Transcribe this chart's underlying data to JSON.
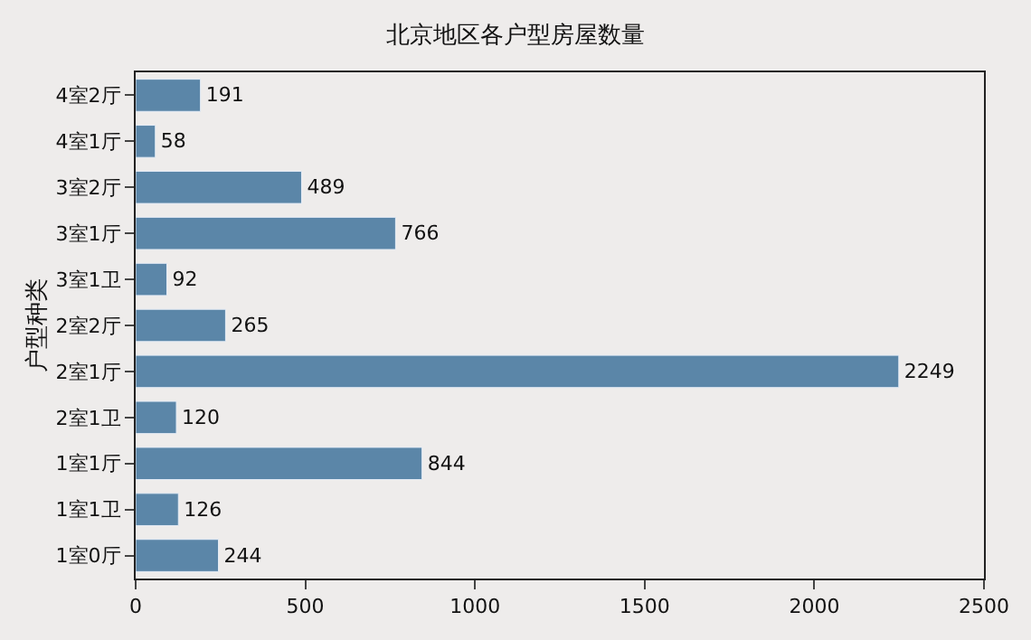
{
  "chart_data": {
    "type": "bar",
    "orientation": "horizontal",
    "title": "北京地区各户型房屋数量",
    "ylabel": "户型种类",
    "categories": [
      "4室2厅",
      "4室1厅",
      "3室2厅",
      "3室1厅",
      "3室1卫",
      "2室2厅",
      "2室1厅",
      "2室1卫",
      "1室1厅",
      "1室1卫",
      "1室0厅"
    ],
    "values": [
      191,
      58,
      489,
      766,
      92,
      265,
      2249,
      120,
      844,
      126,
      244
    ],
    "color": "#5b86a8",
    "xlim": [
      0,
      2500
    ],
    "xticks": [
      0,
      500,
      1000,
      1500,
      2000,
      2500
    ],
    "data_labels": true,
    "grid": false,
    "legend": false
  }
}
